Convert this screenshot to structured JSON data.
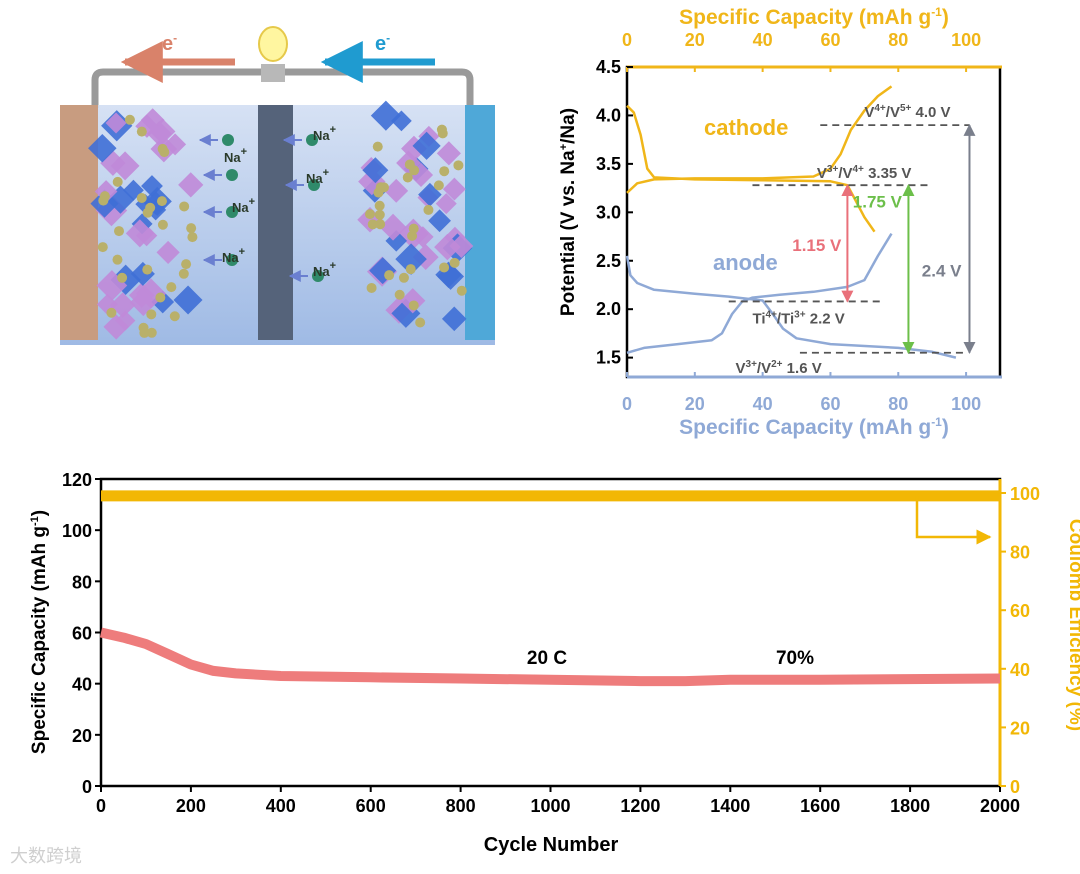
{
  "schematic": {
    "electron_left": "e",
    "electron_right": "e",
    "electron_sup": "-",
    "ion_label": "Na",
    "ion_sup": "+",
    "colors": {
      "left_arrow": "#d9826a",
      "right_arrow": "#1f9bd0",
      "electrolyte": "#a9c3ea"
    }
  },
  "chart_data": [
    {
      "type": "line",
      "title": "",
      "xlabel_top": "Specific Capacity (mAh g-1)",
      "xlabel_bottom": "Specific Capacity (mAh g-1)",
      "xlabel_text": "Specific Capacity (mAh g",
      "xlabel_sup": "-1",
      "xlabel_close": ")",
      "ylabel_text": "Potential (V vs. Na",
      "ylabel_sup": "+",
      "ylabel_close": "/Na)",
      "xlim": [
        0,
        110
      ],
      "ylim": [
        1.3,
        4.5
      ],
      "xticks": [
        0,
        20,
        40,
        60,
        80,
        100
      ],
      "yticks": [
        1.5,
        2.0,
        2.5,
        3.0,
        3.5,
        4.0,
        4.5
      ],
      "ytick_labels": [
        "1.5",
        "2.0",
        "2.5",
        "3.0",
        "3.5",
        "4.0",
        "4.5"
      ],
      "series": [
        {
          "name": "cathode",
          "color": "#f0b619",
          "axis": "top",
          "x": [
            0,
            3,
            8,
            20,
            40,
            55,
            60,
            63,
            66,
            70,
            74,
            78
          ],
          "y": [
            3.2,
            3.3,
            3.34,
            3.35,
            3.35,
            3.37,
            3.45,
            3.6,
            3.85,
            4.05,
            4.2,
            4.3
          ]
        },
        {
          "name": "cathode-discharge",
          "color": "#f0b619",
          "axis": "top",
          "x": [
            0,
            2,
            4,
            6,
            8,
            20,
            40,
            60,
            65,
            67,
            70,
            73
          ],
          "y": [
            4.1,
            4.03,
            3.8,
            3.45,
            3.36,
            3.34,
            3.33,
            3.32,
            3.28,
            3.15,
            2.95,
            2.8
          ]
        },
        {
          "name": "anode",
          "color": "#8fa9d6",
          "axis": "bottom",
          "x": [
            0,
            5,
            15,
            25,
            28,
            31,
            34,
            37,
            45,
            55,
            65,
            70,
            74,
            78
          ],
          "y": [
            1.55,
            1.6,
            1.64,
            1.68,
            1.75,
            1.95,
            2.08,
            2.12,
            2.15,
            2.18,
            2.23,
            2.3,
            2.55,
            2.78
          ]
        },
        {
          "name": "anode-discharge",
          "color": "#8fa9d6",
          "axis": "bottom",
          "x": [
            0,
            1,
            3,
            8,
            20,
            30,
            40,
            43,
            46,
            50,
            60,
            80,
            90,
            97
          ],
          "y": [
            2.55,
            2.35,
            2.27,
            2.2,
            2.16,
            2.13,
            2.09,
            1.95,
            1.8,
            1.7,
            1.64,
            1.6,
            1.56,
            1.5
          ]
        }
      ],
      "labels": {
        "cathode": "cathode",
        "anode": "anode"
      },
      "annotations": [
        {
          "pre": "V",
          "s1": "4+",
          "mid": "/V",
          "s2": "5+",
          "post": " 4.0 V",
          "level": 3.9,
          "x0": 57,
          "x1": 101
        },
        {
          "pre": "V",
          "s1": "3+",
          "mid": "/V",
          "s2": "4+",
          "post": "  3.35 V",
          "level": 3.28,
          "x0": 37,
          "x1": 90
        },
        {
          "pre": "Ti",
          "s1": "4+",
          "mid": "/Ti",
          "s2": "3+",
          "post": " 2.2 V",
          "level": 2.08,
          "x0": 30,
          "x1": 76
        },
        {
          "pre": "V",
          "s1": "3+",
          "mid": "/V",
          "s2": "2+",
          "post": " 1.6 V",
          "level": 1.55,
          "x0": 51,
          "x1": 100
        }
      ],
      "arrows": [
        {
          "label": "1.15 V",
          "color": "#e9707a",
          "x": 65,
          "from": 3.28,
          "to": 2.08
        },
        {
          "label": "1.75 V",
          "color": "#6cbf4a",
          "x": 83,
          "from": 3.28,
          "to": 1.55
        },
        {
          "label": "2.4 V",
          "color": "#7a7f8c",
          "x": 101,
          "from": 3.9,
          "to": 1.55
        }
      ]
    },
    {
      "type": "line",
      "xlabel": "Cycle Number",
      "ylabel_text": "Specific Capacity (mAh g",
      "ylabel_sup": "-1",
      "ylabel_close": ")",
      "y2label": "Coulomb Efficiency (%)",
      "xlim": [
        0,
        2000
      ],
      "ylim": [
        0,
        120
      ],
      "y2lim": [
        0,
        105
      ],
      "xticks": [
        "0",
        "200",
        "400",
        "600",
        "800",
        "1000",
        "1200",
        "1400",
        "1600",
        "1800",
        "2000"
      ],
      "yticks": [
        "0",
        "20",
        "40",
        "60",
        "80",
        "100",
        "120"
      ],
      "y2ticks": [
        "0",
        "20",
        "40",
        "60",
        "80",
        "100"
      ],
      "series": [
        {
          "name": "Specific Capacity",
          "color": "#ee7c7c",
          "axis": "left",
          "x": [
            0,
            50,
            100,
            150,
            200,
            250,
            300,
            400,
            600,
            800,
            1000,
            1200,
            1300,
            1400,
            1600,
            2000
          ],
          "y": [
            60,
            58,
            55.5,
            51.5,
            47.5,
            45,
            44,
            43,
            42.5,
            42,
            41.5,
            41,
            41,
            41.5,
            41.5,
            42
          ]
        },
        {
          "name": "Coulomb Efficiency",
          "color": "#f2b705",
          "axis": "right",
          "x": [
            0,
            2000
          ],
          "y": [
            99,
            99
          ]
        }
      ],
      "annotations": {
        "rate": "20 C",
        "retention": "70%"
      }
    }
  ],
  "watermark": "大数跨境"
}
